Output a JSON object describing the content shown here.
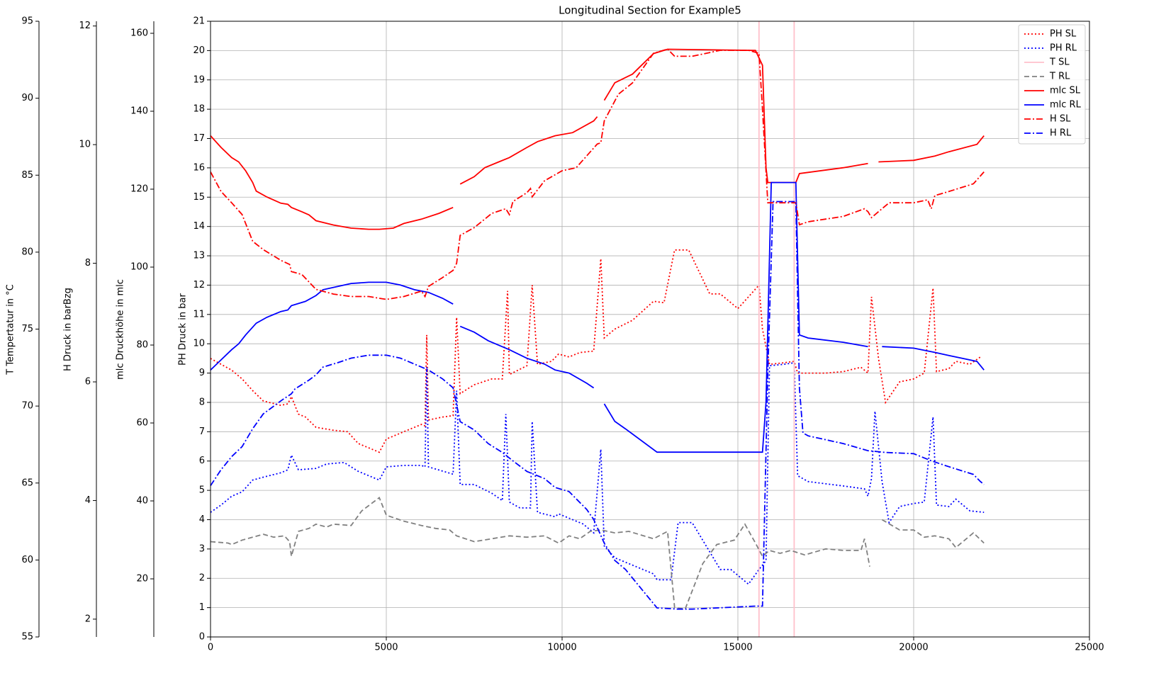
{
  "chart_data": {
    "type": "line",
    "title": "Longitudinal Section for Example5",
    "ylabel": "PH Druck in bar",
    "xlim": [
      0,
      25000
    ],
    "xticks": [
      0,
      5000,
      10000,
      15000,
      20000,
      25000
    ],
    "ylim": [
      0,
      21
    ],
    "yticks": [
      0,
      1,
      2,
      3,
      4,
      5,
      6,
      7,
      8,
      9,
      10,
      11,
      12,
      13,
      14,
      15,
      16,
      17,
      18,
      19,
      20,
      21
    ],
    "grid": true,
    "legend": "upper right",
    "extra_axes": [
      {
        "id": "mlc",
        "label": "mlc Druckhöhe in mlc",
        "lim": [
          5.09,
          163.09
        ],
        "ticks": [
          20,
          40,
          60,
          80,
          100,
          120,
          140,
          160
        ]
      },
      {
        "id": "h",
        "label": "H Druck in barBzg",
        "lim": [
          1.7,
          12.08
        ],
        "ticks": [
          2,
          4,
          6,
          8,
          10,
          12
        ]
      },
      {
        "id": "t",
        "label": "T Tempertatur in °C",
        "lim": [
          55,
          95
        ],
        "ticks": [
          55,
          60,
          65,
          70,
          75,
          80,
          85,
          90,
          95
        ]
      }
    ],
    "series": [
      {
        "name": "PH SL",
        "color": "#ff0000",
        "style": "dotted",
        "x": [
          0,
          300,
          600,
          900,
          1200,
          1500,
          2000,
          2200,
          2300,
          2500,
          2700,
          3000,
          3500,
          3900,
          4200,
          4800,
          5000,
          5500,
          6000,
          6100,
          6150,
          6200,
          6600,
          6900,
          7000,
          7100,
          7500,
          8000,
          8300,
          8450,
          8500,
          9000,
          9150,
          9300,
          9700,
          9900,
          10200,
          10500,
          10900,
          11100,
          11200,
          11500,
          12000,
          12600,
          12900,
          13200,
          13600,
          14200,
          14500,
          15000,
          15300,
          15600,
          15700,
          15900,
          16300,
          16600,
          16700,
          17500,
          18000,
          18500,
          18700,
          18800,
          19000,
          19200,
          19600,
          20000,
          20300,
          20550,
          20650,
          21000,
          21200,
          21600,
          21900
        ],
        "values": [
          9.5,
          9.3,
          9.1,
          8.8,
          8.4,
          8.05,
          7.9,
          7.95,
          8.2,
          7.6,
          7.5,
          7.15,
          7.05,
          7.0,
          6.6,
          6.3,
          6.75,
          7.0,
          7.25,
          7.2,
          10.3,
          7.4,
          7.5,
          7.55,
          10.9,
          8.3,
          8.6,
          8.8,
          8.8,
          11.8,
          8.95,
          9.25,
          12.0,
          9.3,
          9.4,
          9.65,
          9.55,
          9.7,
          9.75,
          12.9,
          10.2,
          10.5,
          10.8,
          11.45,
          11.4,
          13.2,
          13.2,
          11.7,
          11.7,
          11.2,
          11.6,
          12.0,
          10.5,
          9.3,
          9.35,
          9.4,
          9.0,
          9.0,
          9.05,
          9.2,
          9.0,
          11.6,
          9.5,
          8.0,
          8.7,
          8.8,
          9.0,
          11.9,
          9.05,
          9.15,
          9.4,
          9.3,
          9.55
        ]
      },
      {
        "name": "PH RL",
        "color": "#0000ff",
        "style": "dotted",
        "x": [
          0,
          300,
          600,
          900,
          1200,
          1500,
          2000,
          2200,
          2300,
          2500,
          3000,
          3300,
          3800,
          4200,
          4800,
          5000,
          5500,
          6000,
          6100,
          6150,
          6200,
          6900,
          7000,
          7100,
          7500,
          8000,
          8300,
          8400,
          8500,
          8800,
          9100,
          9150,
          9300,
          9800,
          9900,
          10200,
          10600,
          10900,
          11100,
          11200,
          11500,
          12000,
          12600,
          12700,
          13100,
          13300,
          13700,
          14500,
          14800,
          15300,
          15600,
          15800,
          15900,
          16300,
          16600,
          16700,
          17000,
          18000,
          18600,
          18700,
          18800,
          18900,
          19100,
          19300,
          19600,
          20000,
          20300,
          20550,
          20650,
          21000,
          21200,
          21600,
          22000
        ],
        "values": [
          4.25,
          4.5,
          4.8,
          4.95,
          5.35,
          5.45,
          5.6,
          5.7,
          6.2,
          5.7,
          5.75,
          5.9,
          5.95,
          5.65,
          5.35,
          5.8,
          5.85,
          5.85,
          5.8,
          9.2,
          5.8,
          5.55,
          8.4,
          5.2,
          5.2,
          4.9,
          4.65,
          7.6,
          4.6,
          4.4,
          4.4,
          7.35,
          4.25,
          4.1,
          4.2,
          4.05,
          3.85,
          3.55,
          6.4,
          3.1,
          2.7,
          2.45,
          2.15,
          1.95,
          1.95,
          3.9,
          3.9,
          2.3,
          2.3,
          1.8,
          2.3,
          2.6,
          9.25,
          9.3,
          9.35,
          5.5,
          5.3,
          5.15,
          5.05,
          4.8,
          5.4,
          7.7,
          5.3,
          3.9,
          4.45,
          4.55,
          4.6,
          7.5,
          4.5,
          4.45,
          4.7,
          4.3,
          4.25
        ]
      },
      {
        "name": "T SL",
        "color": "#ffc0cb",
        "style": "solid",
        "axis": "t",
        "x": [
          15600,
          15600,
          15600,
          16600,
          16600
        ],
        "values": [
          55,
          95,
          null,
          55,
          95
        ]
      },
      {
        "name": "T RL",
        "color": "#808080",
        "style": "dashed",
        "axis": "t",
        "x": [
          0,
          500,
          600,
          900,
          1500,
          1800,
          2100,
          2250,
          2300,
          2500,
          2800,
          3000,
          3300,
          3500,
          4000,
          4300,
          4800,
          5000,
          5500,
          6000,
          6400,
          6800,
          7000,
          7500,
          8000,
          8500,
          9000,
          9500,
          9900,
          10200,
          10500,
          10800,
          11100,
          11500,
          11900,
          12600,
          13000,
          13200,
          13500,
          14000,
          14400,
          14900,
          15200,
          15500,
          15700,
          15900,
          16200,
          16500,
          16900,
          17500,
          18000,
          18500,
          18600,
          18750,
          18900,
          19100,
          19600,
          20000,
          20300,
          20600,
          21000,
          21200,
          21700,
          22000
        ],
        "values": [
          61.19,
          61.1,
          61.0,
          61.29,
          61.67,
          61.48,
          61.57,
          61.19,
          60.24,
          61.86,
          62.05,
          62.33,
          62.14,
          62.33,
          62.24,
          63.19,
          64.05,
          62.91,
          62.52,
          62.24,
          62.05,
          61.95,
          61.57,
          61.19,
          61.38,
          61.57,
          61.48,
          61.57,
          61.1,
          61.57,
          61.38,
          61.86,
          61.95,
          61.76,
          61.86,
          61.38,
          61.86,
          56.91,
          56.81,
          59.76,
          61.0,
          61.29,
          62.33,
          61.1,
          60.24,
          60.62,
          60.43,
          60.62,
          60.33,
          60.72,
          60.62,
          60.62,
          61.38,
          59.57,
          null,
          62.62,
          61.95,
          61.95,
          61.48,
          61.57,
          61.38,
          60.81,
          61.76,
          61.1
        ]
      },
      {
        "name": "mlc SL",
        "color": "#ff0000",
        "style": "solid",
        "axis": "mlc",
        "x": [
          0,
          300,
          600,
          800,
          1000,
          1200,
          1300,
          1600,
          2000,
          2200,
          2300,
          2600,
          2800,
          3000,
          3500,
          4000,
          4500,
          4800,
          5200,
          5500,
          6000,
          6500,
          6900,
          7000,
          7100,
          7500,
          7800,
          8200,
          8500,
          9000,
          9300,
          9800,
          10300,
          10900,
          11000,
          11100,
          11200,
          11500,
          12000,
          12600,
          13000,
          15500,
          15700,
          15800,
          15850,
          16650,
          16750,
          17000,
          18000,
          18700,
          18850,
          19000,
          20000,
          20600,
          21000,
          21800,
          22000
        ],
        "values": [
          133.7,
          130.7,
          128.1,
          127.0,
          124.7,
          121.7,
          119.5,
          118.0,
          116.4,
          116.1,
          115.3,
          114.2,
          113.4,
          111.9,
          110.8,
          110.0,
          109.7,
          109.7,
          110.0,
          111.2,
          112.3,
          113.8,
          115.3,
          null,
          121.3,
          123.2,
          125.5,
          127.0,
          128.1,
          130.7,
          132.2,
          133.7,
          134.5,
          137.5,
          138.6,
          null,
          142.8,
          147.3,
          149.5,
          154.8,
          155.9,
          155.6,
          151.8,
          125.5,
          121.7,
          121.7,
          124.0,
          124.3,
          125.5,
          126.6,
          null,
          127.0,
          127.4,
          128.5,
          129.6,
          131.5,
          133.7
        ]
      },
      {
        "name": "mlc RL",
        "color": "#0000ff",
        "style": "solid",
        "axis": "mlc",
        "x": [
          0,
          300,
          600,
          800,
          1000,
          1300,
          1600,
          2000,
          2200,
          2300,
          2700,
          3000,
          3200,
          3600,
          4000,
          4500,
          5000,
          5400,
          5800,
          6200,
          6600,
          6900,
          7000,
          7100,
          7500,
          7900,
          8500,
          9000,
          9500,
          9800,
          10200,
          10700,
          10900,
          11100,
          11200,
          11500,
          11800,
          12700,
          15500,
          15700,
          15800,
          15950,
          16650,
          16750,
          17000,
          18000,
          18700,
          18900,
          19100,
          20000,
          20600,
          21000,
          21800,
          22000
        ],
        "values": [
          73.6,
          76.2,
          78.8,
          80.3,
          82.6,
          85.6,
          87.1,
          88.6,
          89.0,
          90.1,
          91.2,
          92.7,
          94.2,
          95.0,
          95.8,
          96.1,
          96.1,
          95.4,
          94.2,
          93.5,
          92.0,
          90.5,
          null,
          84.8,
          83.3,
          81.1,
          78.8,
          76.6,
          75.1,
          73.6,
          72.8,
          70.2,
          69.0,
          null,
          64.9,
          60.4,
          58.5,
          52.5,
          52.5,
          52.5,
          65.3,
          121.7,
          121.7,
          82.6,
          81.8,
          80.7,
          79.6,
          null,
          79.6,
          79.2,
          78.1,
          77.3,
          75.8,
          73.6
        ]
      },
      {
        "name": "H SL",
        "color": "#ff0000",
        "style": "dashdot",
        "axis": "h",
        "x": [
          0,
          300,
          600,
          900,
          1200,
          1500,
          2000,
          2250,
          2300,
          2600,
          3000,
          3500,
          4000,
          4500,
          5000,
          5500,
          6000,
          6100,
          6200,
          6600,
          6900,
          7000,
          7100,
          7500,
          8000,
          8400,
          8500,
          8600,
          9000,
          9100,
          9150,
          9500,
          10000,
          10400,
          11000,
          11100,
          11200,
          11600,
          12000,
          12600,
          13000,
          13200,
          13700,
          14500,
          15300,
          15600,
          15700,
          15850,
          16650,
          16750,
          17000,
          18000,
          18600,
          18700,
          18800,
          19300,
          20000,
          20400,
          20500,
          20600,
          21000,
          21700,
          22000
        ],
        "values": [
          9.54,
          9.21,
          9.02,
          8.82,
          8.37,
          8.23,
          8.05,
          7.98,
          7.86,
          7.81,
          7.56,
          7.48,
          7.44,
          7.44,
          7.39,
          7.44,
          7.53,
          7.44,
          7.61,
          7.76,
          7.88,
          8.0,
          8.47,
          8.6,
          8.84,
          8.92,
          8.82,
          9.04,
          9.19,
          9.26,
          9.12,
          9.39,
          9.56,
          9.61,
          10.01,
          10.03,
          10.4,
          10.85,
          11.04,
          11.54,
          11.61,
          11.49,
          11.49,
          11.59,
          11.59,
          11.54,
          10.6,
          9.02,
          9.02,
          8.65,
          8.7,
          8.79,
          8.92,
          8.87,
          8.77,
          9.02,
          9.02,
          9.07,
          8.92,
          9.14,
          9.21,
          9.34,
          9.54
        ]
      },
      {
        "name": "H RL",
        "color": "#0000ff",
        "style": "dashdot",
        "axis": "h",
        "x": [
          0,
          300,
          600,
          900,
          1200,
          1500,
          2000,
          2300,
          2400,
          2800,
          3000,
          3200,
          3600,
          4000,
          4500,
          5000,
          5400,
          5800,
          6200,
          6600,
          6900,
          7100,
          7500,
          7900,
          8300,
          8600,
          9000,
          9500,
          9800,
          10200,
          10700,
          10900,
          11200,
          11500,
          11800,
          12700,
          13300,
          13700,
          15500,
          15700,
          15850,
          16000,
          16650,
          16750,
          16850,
          17000,
          18000,
          18700,
          19200,
          20000,
          20500,
          21000,
          21700,
          21900,
          22000
        ],
        "values": [
          4.25,
          4.52,
          4.74,
          4.91,
          5.21,
          5.46,
          5.68,
          5.8,
          5.88,
          6.03,
          6.12,
          6.25,
          6.32,
          6.4,
          6.45,
          6.45,
          6.4,
          6.3,
          6.2,
          6.05,
          5.9,
          5.33,
          5.19,
          4.96,
          4.81,
          4.67,
          4.49,
          4.37,
          4.22,
          4.15,
          3.85,
          3.68,
          3.28,
          2.99,
          2.84,
          2.19,
          2.17,
          2.17,
          2.22,
          2.22,
          6.15,
          9.04,
          9.04,
          5.9,
          5.14,
          5.09,
          4.96,
          4.84,
          4.81,
          4.79,
          4.67,
          4.57,
          4.44,
          4.32,
          4.27
        ]
      }
    ]
  }
}
